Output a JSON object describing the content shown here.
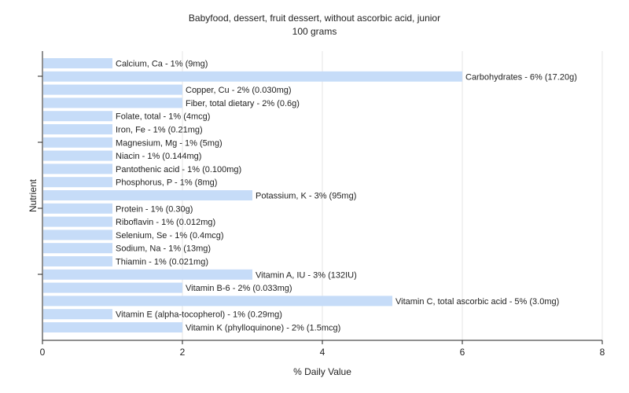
{
  "chart_data": {
    "type": "bar",
    "orientation": "horizontal",
    "title": "Babyfood, dessert, fruit dessert, without ascorbic acid, junior",
    "subtitle": "100 grams",
    "xlabel": "% Daily Value",
    "ylabel": "Nutrient",
    "xlim": [
      0,
      8
    ],
    "xticks": [
      "0",
      "2",
      "4",
      "6",
      "8"
    ],
    "grid": true,
    "bar_color": "#c6dcf8",
    "categories": [
      "Calcium, Ca",
      "Carbohydrates",
      "Copper, Cu",
      "Fiber, total dietary",
      "Folate, total",
      "Iron, Fe",
      "Magnesium, Mg",
      "Niacin",
      "Pantothenic acid",
      "Phosphorus, P",
      "Potassium, K",
      "Protein",
      "Riboflavin",
      "Selenium, Se",
      "Sodium, Na",
      "Thiamin",
      "Vitamin A, IU",
      "Vitamin B-6",
      "Vitamin C, total ascorbic acid",
      "Vitamin E (alpha-tocopherol)",
      "Vitamin K (phylloquinone)"
    ],
    "values": [
      1,
      6,
      2,
      2,
      1,
      1,
      1,
      1,
      1,
      1,
      3,
      1,
      1,
      1,
      1,
      1,
      3,
      2,
      5,
      1,
      2
    ],
    "labels": [
      "Calcium, Ca - 1% (9mg)",
      "Carbohydrates - 6% (17.20g)",
      "Copper, Cu - 2% (0.030mg)",
      "Fiber, total dietary - 2% (0.6g)",
      "Folate, total - 1% (4mcg)",
      "Iron, Fe - 1% (0.21mg)",
      "Magnesium, Mg - 1% (5mg)",
      "Niacin - 1% (0.144mg)",
      "Pantothenic acid - 1% (0.100mg)",
      "Phosphorus, P - 1% (8mg)",
      "Potassium, K - 3% (95mg)",
      "Protein - 1% (0.30g)",
      "Riboflavin - 1% (0.012mg)",
      "Selenium, Se - 1% (0.4mcg)",
      "Sodium, Na - 1% (13mg)",
      "Thiamin - 1% (0.021mg)",
      "Vitamin A, IU - 3% (132IU)",
      "Vitamin B-6 - 2% (0.033mg)",
      "Vitamin C, total ascorbic acid - 5% (3.0mg)",
      "Vitamin E (alpha-tocopherol) - 1% (0.29mg)",
      "Vitamin K (phylloquinone) - 2% (1.5mcg)"
    ]
  }
}
